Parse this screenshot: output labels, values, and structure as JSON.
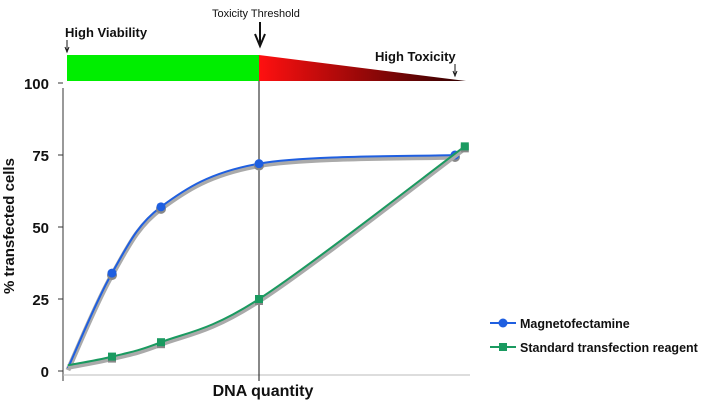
{
  "chart_data": {
    "type": "line",
    "title": "",
    "xlabel": "DNA quantity",
    "ylabel": "% transfected cells",
    "ylim": [
      0,
      100
    ],
    "xlim": [
      0,
      8.3
    ],
    "yticks": [
      "0",
      "25",
      "50",
      "75",
      "100"
    ],
    "ytick_values": [
      0,
      25,
      50,
      75,
      100
    ],
    "series": [
      {
        "name": "Magnetofectamine",
        "color": "#1f5fe0",
        "x": [
          0.1,
          1,
          2,
          4,
          8
        ],
        "values": [
          1,
          34,
          57,
          72,
          75
        ],
        "markers": [
          false,
          true,
          true,
          true,
          true
        ],
        "marker": "circle"
      },
      {
        "name": "Standard transfection reagent",
        "color": "#1a9a60",
        "x": [
          0.1,
          1,
          2,
          4,
          8.2
        ],
        "values": [
          2,
          5,
          10,
          25,
          78
        ],
        "markers": [
          false,
          true,
          true,
          true,
          true
        ],
        "marker": "square"
      }
    ],
    "threshold": {
      "label": "Toxicity Threshold",
      "x": 4
    },
    "toxicity_bar": {
      "left_label": "High Viability",
      "right_label": "High Toxicity",
      "viable_color": "#00ee00",
      "toxic_color_start": "#ff1010",
      "toxic_color_end": "#300000"
    },
    "legend_position": "bottom-right",
    "grid": false
  }
}
